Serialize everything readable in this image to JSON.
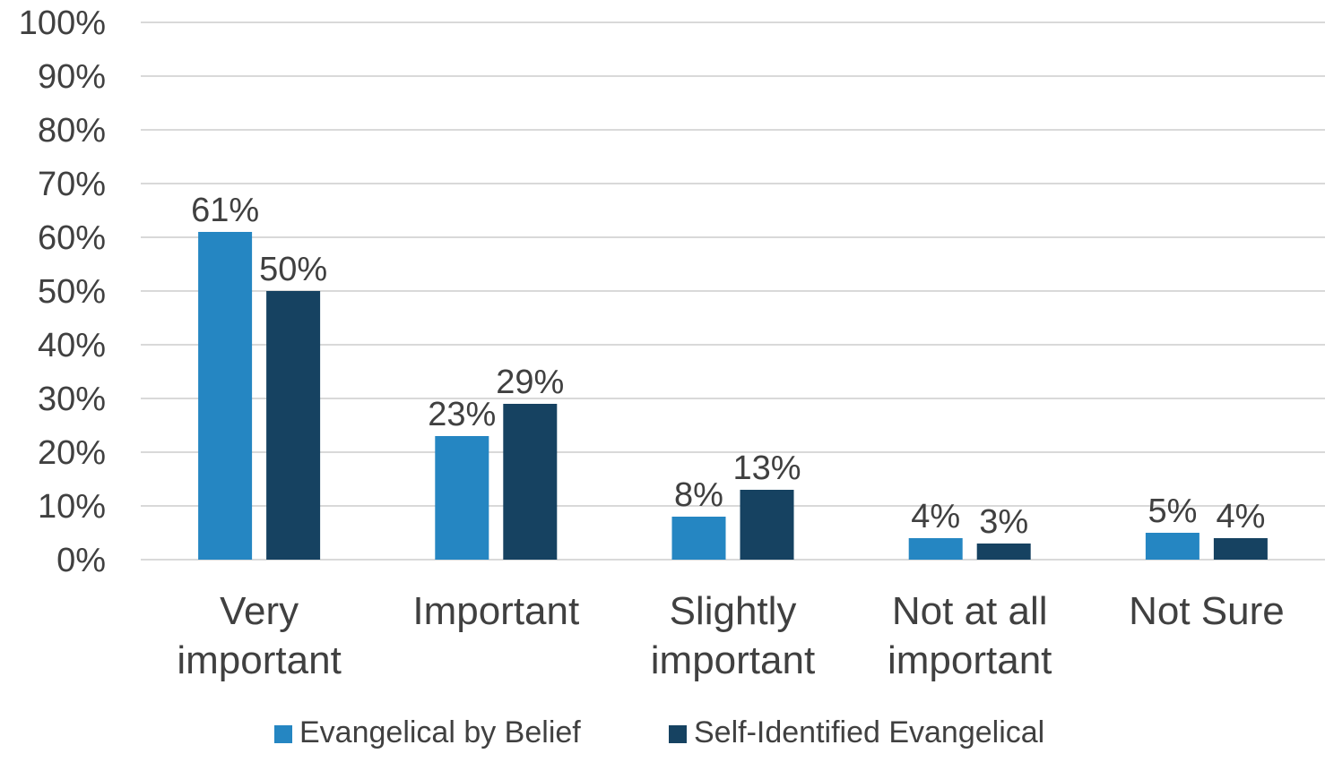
{
  "chart_data": {
    "type": "bar",
    "categories": [
      [
        "Very",
        "important"
      ],
      [
        "Important"
      ],
      [
        "Slightly",
        "important"
      ],
      [
        "Not at all",
        "important"
      ],
      [
        "Not Sure"
      ]
    ],
    "series": [
      {
        "name": "Evangelical by Belief",
        "color": "#2586c2",
        "values": [
          61,
          23,
          8,
          4,
          5
        ],
        "labels": [
          "61%",
          "23%",
          "8%",
          "4%",
          "5%"
        ]
      },
      {
        "name": "Self-Identified Evangelical",
        "color": "#164261",
        "values": [
          50,
          29,
          13,
          3,
          4
        ],
        "labels": [
          "50%",
          "29%",
          "13%",
          "3%",
          "4%"
        ]
      }
    ],
    "y_ticks": [
      "0%",
      "10%",
      "20%",
      "30%",
      "40%",
      "50%",
      "60%",
      "70%",
      "80%",
      "90%",
      "100%"
    ],
    "ylim": [
      0,
      100
    ],
    "grid": true,
    "legend_position": "bottom"
  }
}
